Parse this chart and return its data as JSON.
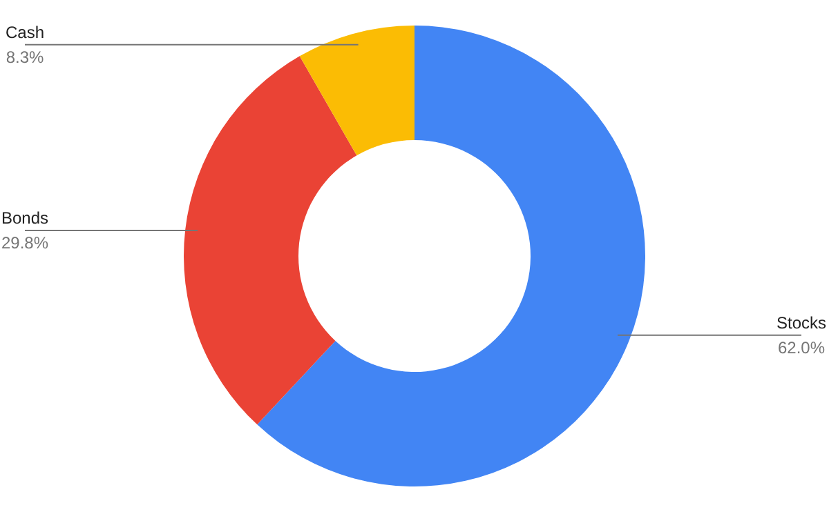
{
  "chart_data": {
    "type": "donut",
    "categories": [
      "Stocks",
      "Bonds",
      "Cash"
    ],
    "values": [
      62.0,
      29.8,
      8.3
    ],
    "colors": [
      "#4285f4",
      "#ea4335",
      "#fbbc04"
    ],
    "value_labels": [
      "62.0%",
      "29.8%",
      "8.3%"
    ]
  }
}
